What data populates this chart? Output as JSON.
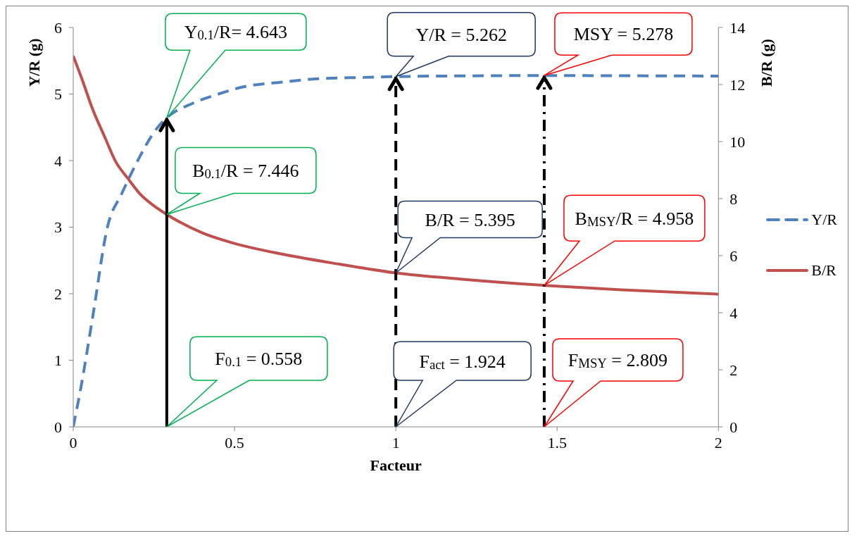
{
  "chart_data": {
    "type": "line",
    "xlabel": "Facteur",
    "ylabel": "Y/R (g)",
    "y2label": "B/R (g)",
    "xlim": [
      0,
      2
    ],
    "xticks": [
      0,
      0.5,
      1,
      1.5,
      2
    ],
    "ylim": [
      0,
      6
    ],
    "yticks": [
      0,
      1,
      2,
      3,
      4,
      5,
      6
    ],
    "y2lim": [
      0,
      14
    ],
    "y2ticks": [
      0,
      2,
      4,
      6,
      8,
      10,
      12,
      14
    ],
    "grid": false,
    "legend": "right",
    "marker": "none",
    "series": [
      {
        "name": "Y/R",
        "color": "#4f81bd",
        "line_style": "dashed",
        "x": [
          0,
          0.026,
          0.06,
          0.107,
          0.15,
          0.2,
          0.254,
          0.29,
          0.37,
          0.45,
          0.52,
          0.65,
          0.76,
          0.9,
          1.0,
          1.2,
          1.46,
          1.7,
          2.0
        ],
        "values": [
          0,
          0.65,
          1.64,
          3.02,
          3.5,
          4.0,
          4.45,
          4.643,
          4.86,
          5.0,
          5.1,
          5.18,
          5.23,
          5.25,
          5.262,
          5.272,
          5.278,
          5.275,
          5.27
        ]
      },
      {
        "name": "B/R",
        "color": "#c0504d",
        "line_style": "solid",
        "axis": "y2",
        "x": [
          0,
          0.03,
          0.057,
          0.1,
          0.13,
          0.17,
          0.205,
          0.25,
          0.29,
          0.4,
          0.5,
          0.65,
          0.8,
          1.0,
          1.2,
          1.46,
          1.7,
          2.0
        ],
        "values": [
          13.0,
          12.1,
          11.23,
          10.1,
          9.33,
          8.7,
          8.19,
          7.75,
          7.446,
          6.8,
          6.43,
          6.05,
          5.75,
          5.395,
          5.18,
          4.958,
          4.8,
          4.65
        ]
      }
    ],
    "ref_lines": [
      {
        "axis": "x",
        "value": 0.29,
        "color": "#000000",
        "line_style": "solid"
      },
      {
        "axis": "x",
        "value": 1.0,
        "color": "#000000",
        "line_style": "dashed"
      },
      {
        "axis": "x",
        "value": 1.46,
        "color": "#000000",
        "line_style": "dotted"
      }
    ],
    "annotations": [
      "Y$_{0.1}$/R= 4.643",
      "B$_{0.1}$/R = 7.446",
      "F$_{0.1}$ = 0.558",
      {
        "text": "Y/R = 5.262",
        "x": 1.0,
        "y": 5.262
      },
      "B/R = 5.395",
      "F$_{act}$ = 1.924",
      {
        "text": "MSY = 5.278",
        "x": 1.46,
        "y": 5.278
      },
      "B$_{MSY}$/R = 4.958",
      "F$_{MSY}$ = 2.809"
    ]
  }
}
